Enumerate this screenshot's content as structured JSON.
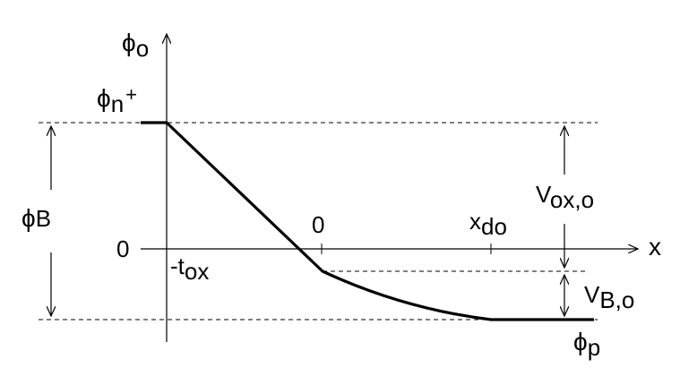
{
  "diagram": {
    "labels": {
      "phi_symbol": "ϕ",
      "potential_axis_sub": "o",
      "phi_n_sub": "n",
      "phi_n_sup": "+",
      "phi_b_sub": "B",
      "phi_p_sub": "p",
      "zero_left": "0",
      "zero_top": "0",
      "t_ox": "-t",
      "t_ox_sub": "ox",
      "x_do": "x",
      "x_do_sub": "do",
      "x_axis": "x",
      "v_ox": "V",
      "v_ox_sub": "ox,o",
      "v_b": "V",
      "v_b_sub": "B,o"
    },
    "colors": {
      "line": "#000000",
      "dashed": "#000000",
      "background": "#ffffff"
    }
  }
}
